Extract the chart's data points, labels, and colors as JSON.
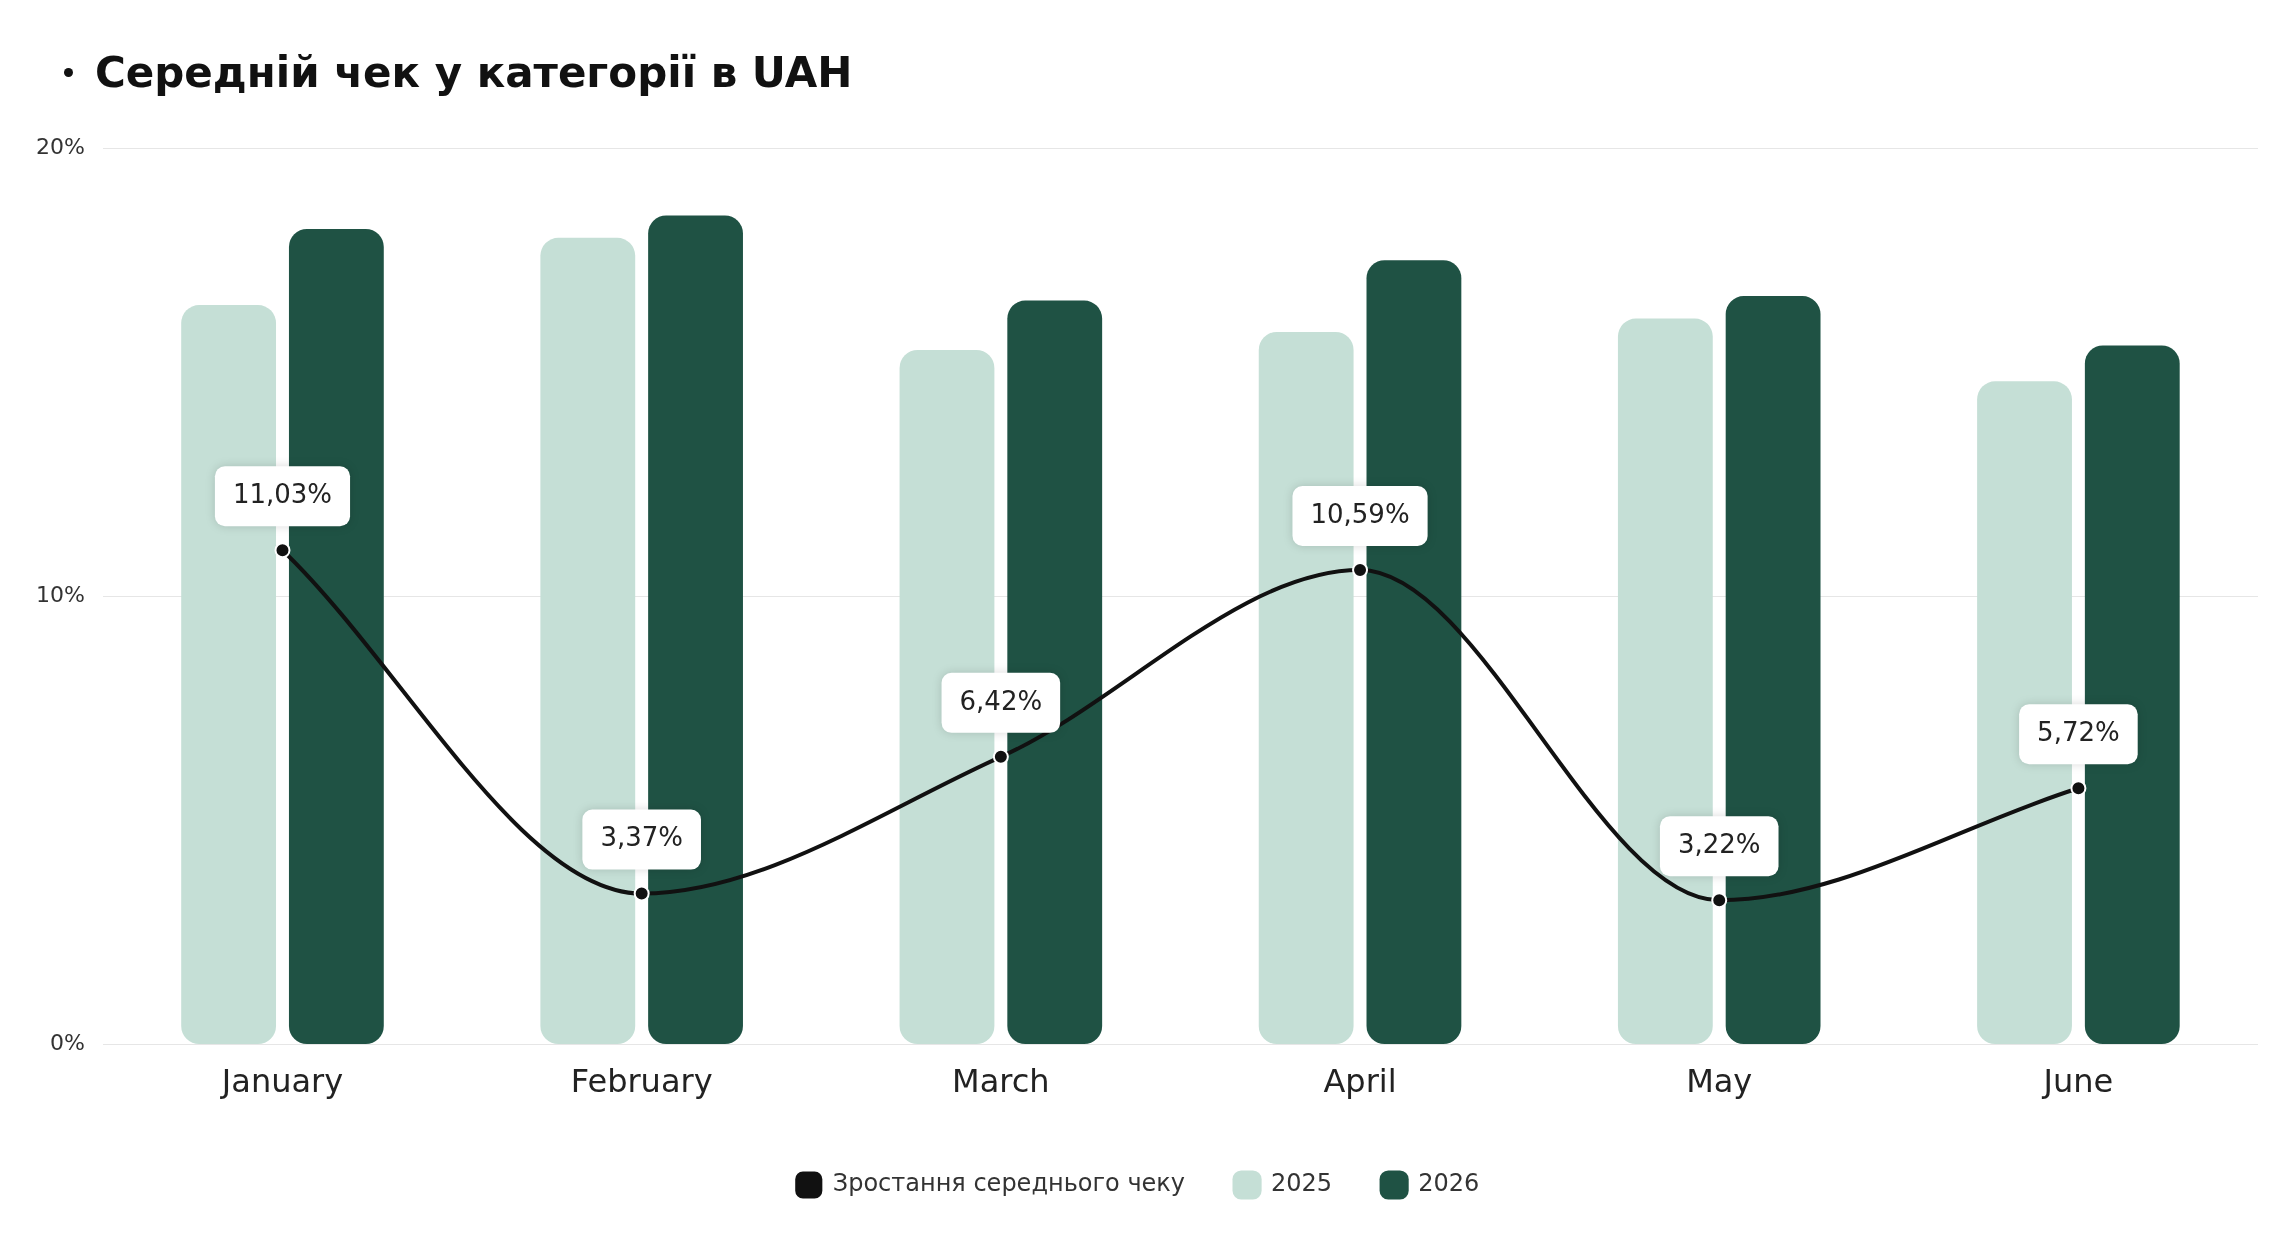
{
  "chart_data": {
    "type": "bar",
    "title": "Середній чек у категорії в UAH",
    "categories": [
      "January",
      "February",
      "March",
      "April",
      "May",
      "June"
    ],
    "series": [
      {
        "name": "2025",
        "color": "#c5dfd6",
        "values": [
          16.5,
          18.0,
          15.5,
          15.9,
          16.2,
          14.8
        ]
      },
      {
        "name": "2026",
        "color": "#1f5244",
        "values": [
          18.2,
          18.5,
          16.6,
          17.5,
          16.7,
          15.6
        ]
      },
      {
        "name": "Зростання середнього чеку",
        "type": "line",
        "color": "#111111",
        "marker": "circle",
        "values": [
          11.03,
          3.37,
          6.42,
          10.59,
          3.22,
          5.72
        ],
        "value_labels": [
          "11,03%",
          "3,37%",
          "6,42%",
          "10,59%",
          "3,22%",
          "5,72%"
        ]
      }
    ],
    "ylim": [
      0,
      20
    ],
    "yticks": [
      {
        "value": 0,
        "label": "0%"
      },
      {
        "value": 10,
        "label": "10%"
      },
      {
        "value": 20,
        "label": "20%"
      }
    ],
    "grid": "y",
    "legend": "bottom"
  }
}
